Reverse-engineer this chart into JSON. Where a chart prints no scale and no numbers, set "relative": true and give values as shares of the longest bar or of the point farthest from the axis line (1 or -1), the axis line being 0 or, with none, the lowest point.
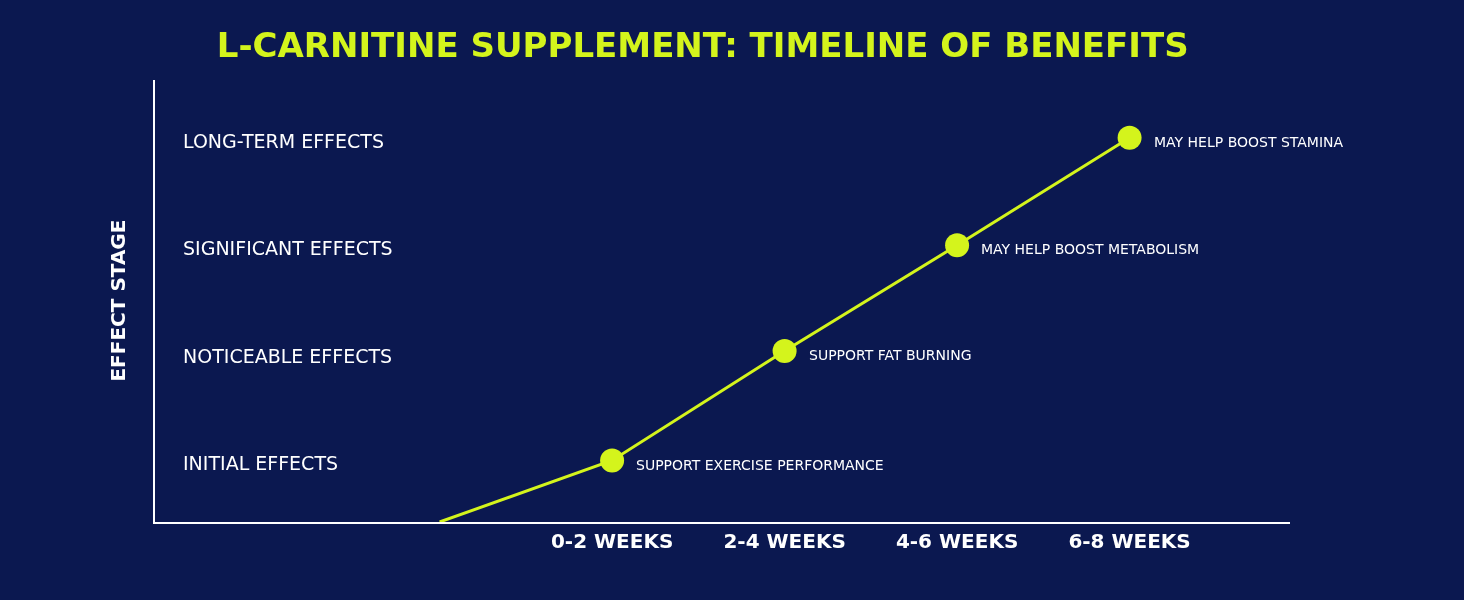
{
  "chart_data": {
    "type": "line",
    "title": "L-CARNITINE SUPPLEMENT: TIMELINE OF BENEFITS",
    "categories": [
      null,
      "0-2 WEEKS",
      "2-4 WEEKS",
      "4-6 WEEKS",
      "6-8 WEEKS"
    ],
    "relative": true,
    "legend": false,
    "series": [
      {
        "color": "#d4f41c",
        "marker": "none",
        "values": [
          0,
          0.16,
          0.445,
          0.72,
          1
        ]
      },
      {
        "type": "scatter",
        "color": "#d4f41c",
        "marker": "circle",
        "values": [
          null,
          0.16,
          0.445,
          0.72,
          1
        ]
      }
    ],
    "annotations": [
      "EFFECT STAGE",
      "INITIAL EFFECTS",
      "NOTICEABLE EFFECTS",
      "SIGNIFICANT EFFECTS",
      "LONG-TERM EFFECTS",
      {
        "text": "SUPPORT EXERCISE PERFORMANCE",
        "x": "0-2 WEEKS",
        "y": 0.16
      },
      {
        "text": "SUPPORT FAT BURNING",
        "x": "2-4 WEEKS",
        "y": 0.445
      },
      {
        "text": "MAY HELP BOOST METABOLISM",
        "x": "4-6 WEEKS",
        "y": 0.72
      },
      {
        "text": "MAY HELP BOOST STAMINA",
        "x": "6-8 WEEKS",
        "y": 1
      }
    ]
  }
}
